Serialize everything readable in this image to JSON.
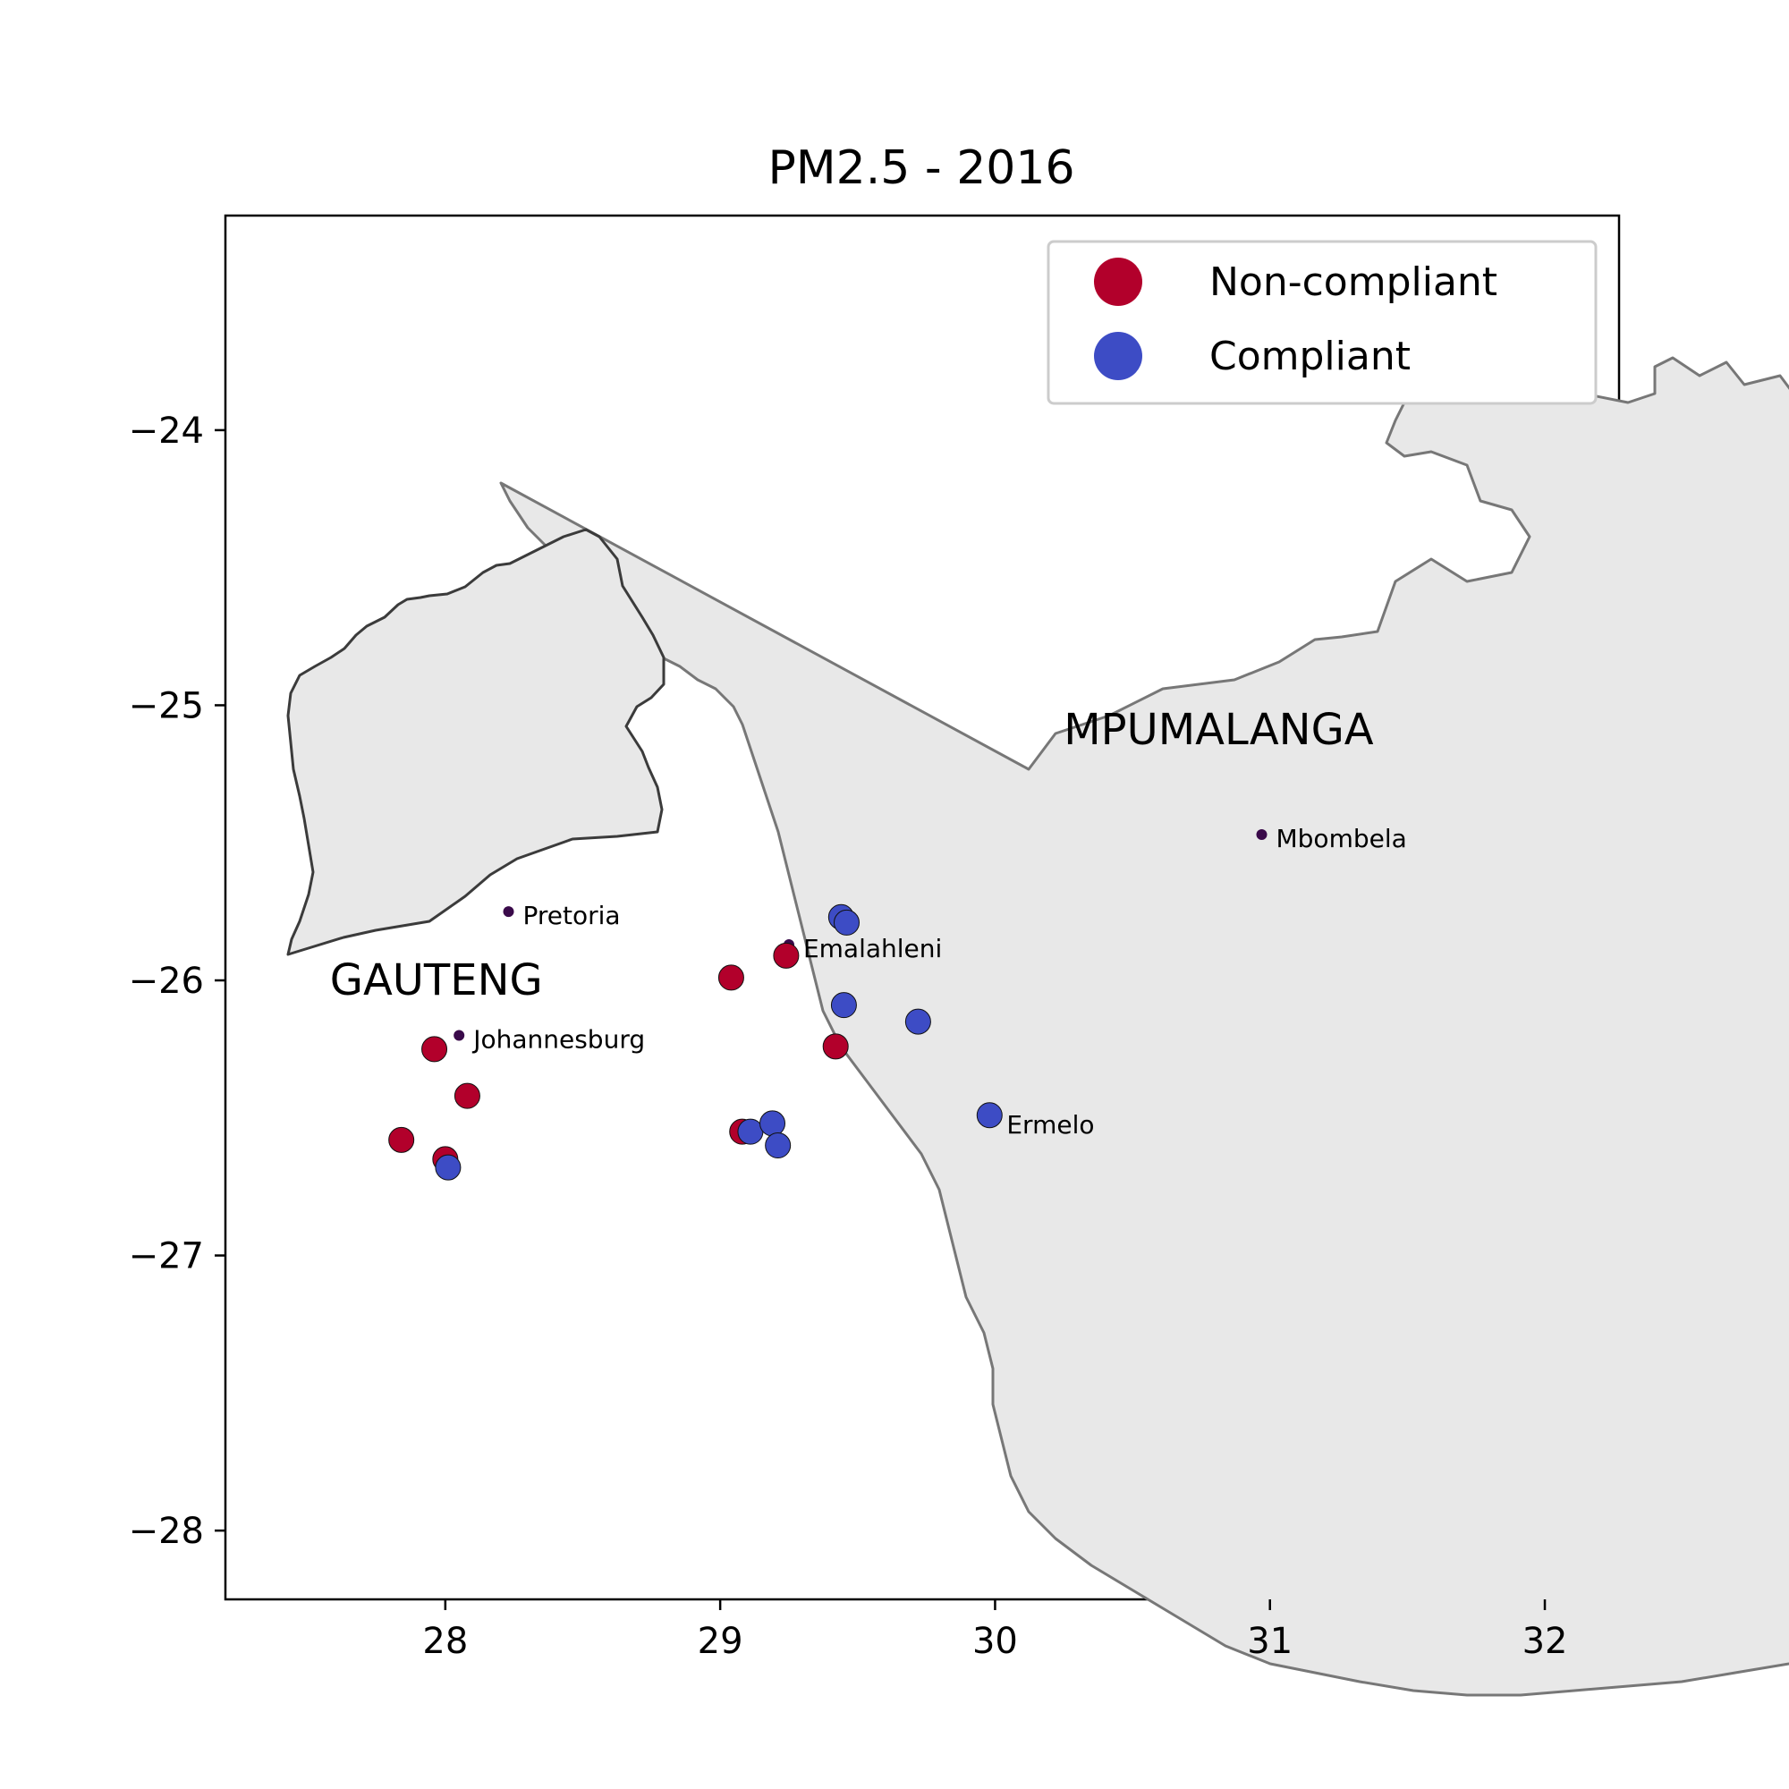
{
  "title": "PM2.5 - 2016",
  "colors": {
    "non_compliant": "#b2002b",
    "compliant": "#3d4cc5",
    "city": "#3a0a4a",
    "province_fill": "#e8e8e8"
  },
  "axes": {
    "x_ticks": [
      28,
      29,
      30,
      31,
      32
    ],
    "x_tick_labels": [
      "28",
      "29",
      "30",
      "31",
      "32"
    ],
    "y_ticks": [
      -24,
      -25,
      -26,
      -27,
      -28
    ],
    "y_tick_labels": [
      "−24",
      "−25",
      "−26",
      "−27",
      "−28"
    ],
    "xlim": [
      27.2,
      32.27
    ],
    "ylim": [
      -28.25,
      -23.22
    ]
  },
  "legend": {
    "placement": "top-right",
    "items": [
      {
        "label": "Non-compliant",
        "status": "non_compliant"
      },
      {
        "label": "Compliant",
        "status": "compliant"
      }
    ]
  },
  "regions": [
    {
      "label": "GAUTENG",
      "lon": 27.58,
      "lat": -26.0
    },
    {
      "label": "MPUMALANGA",
      "lon": 30.25,
      "lat": -25.09
    }
  ],
  "chart_data": {
    "type": "scatter",
    "xlim": [
      27.2,
      32.27
    ],
    "ylim": [
      -28.25,
      -23.22
    ],
    "grid": false,
    "sites": [
      {
        "lon": 27.96,
        "lat": -26.25,
        "status": "non_compliant"
      },
      {
        "lon": 28.08,
        "lat": -26.42,
        "status": "non_compliant"
      },
      {
        "lon": 27.84,
        "lat": -26.58,
        "status": "non_compliant"
      },
      {
        "lon": 28.0,
        "lat": -26.65,
        "status": "non_compliant"
      },
      {
        "lon": 28.01,
        "lat": -26.68,
        "status": "compliant"
      },
      {
        "lon": 29.04,
        "lat": -25.99,
        "status": "non_compliant"
      },
      {
        "lon": 29.24,
        "lat": -25.91,
        "status": "non_compliant"
      },
      {
        "lon": 29.42,
        "lat": -26.24,
        "status": "non_compliant"
      },
      {
        "lon": 29.08,
        "lat": -26.55,
        "status": "non_compliant"
      },
      {
        "lon": 29.11,
        "lat": -26.55,
        "status": "compliant"
      },
      {
        "lon": 29.19,
        "lat": -26.52,
        "status": "compliant"
      },
      {
        "lon": 29.21,
        "lat": -26.6,
        "status": "compliant"
      },
      {
        "lon": 29.44,
        "lat": -25.77,
        "status": "compliant"
      },
      {
        "lon": 29.46,
        "lat": -25.79,
        "status": "compliant"
      },
      {
        "lon": 29.45,
        "lat": -26.09,
        "status": "compliant"
      },
      {
        "lon": 29.72,
        "lat": -26.15,
        "status": "compliant"
      },
      {
        "lon": 29.98,
        "lat": -26.49,
        "status": "compliant"
      }
    ],
    "cities": [
      {
        "name": "Pretoria",
        "lon": 28.23,
        "lat": -25.75
      },
      {
        "name": "Emalahleni",
        "lon": 29.25,
        "lat": -25.87
      },
      {
        "name": "Johannesburg",
        "lon": 28.05,
        "lat": -26.2
      },
      {
        "name": "Mbombela",
        "lon": 30.97,
        "lat": -25.47
      },
      {
        "name": "Ermelo",
        "lon": 29.99,
        "lat": -26.51
      }
    ]
  }
}
